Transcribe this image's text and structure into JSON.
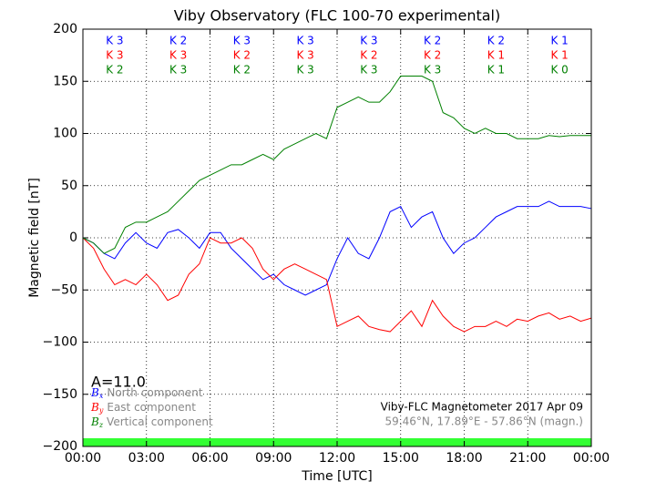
{
  "chart_data": {
    "type": "line",
    "title": "Viby Observatory (FLC 100-70 experimental)",
    "x_label": "Time [UTC]",
    "y_label": "Magnetic field [nT]",
    "x": [
      0,
      0.5,
      1,
      1.5,
      2,
      2.5,
      3,
      3.5,
      4,
      4.5,
      5,
      5.5,
      6,
      6.5,
      7,
      7.5,
      8,
      8.5,
      9,
      9.5,
      10,
      10.5,
      11,
      11.5,
      12,
      12.5,
      13,
      13.5,
      14,
      14.5,
      15,
      15.5,
      16,
      16.5,
      17,
      17.5,
      18,
      18.5,
      19,
      19.5,
      20,
      20.5,
      21,
      21.5,
      22,
      22.5,
      23,
      23.5,
      24
    ],
    "series": [
      {
        "name": "North component",
        "symbol": "B",
        "subscript": "x",
        "color": "#0000ff",
        "values": [
          0,
          -5,
          -15,
          -20,
          -5,
          5,
          -5,
          -10,
          5,
          8,
          0,
          -10,
          5,
          5,
          -10,
          -20,
          -30,
          -40,
          -35,
          -45,
          -50,
          -55,
          -50,
          -45,
          -20,
          0,
          -15,
          -20,
          0,
          25,
          30,
          10,
          20,
          25,
          0,
          -15,
          -5,
          0,
          10,
          20,
          25,
          30,
          30,
          30,
          35,
          30,
          30,
          30,
          28
        ]
      },
      {
        "name": "East component",
        "symbol": "B",
        "subscript": "y",
        "color": "#ff0000",
        "values": [
          0,
          -10,
          -30,
          -45,
          -40,
          -45,
          -35,
          -45,
          -60,
          -55,
          -35,
          -25,
          0,
          -5,
          -5,
          0,
          -10,
          -30,
          -40,
          -30,
          -25,
          -30,
          -35,
          -40,
          -85,
          -80,
          -75,
          -85,
          -88,
          -90,
          -80,
          -70,
          -85,
          -60,
          -75,
          -85,
          -90,
          -85,
          -85,
          -80,
          -85,
          -78,
          -80,
          -75,
          -72,
          -78,
          -75,
          -80,
          -77
        ]
      },
      {
        "name": "Vertical component",
        "symbol": "B",
        "subscript": "z",
        "color": "#008000",
        "values": [
          0,
          -5,
          -15,
          -10,
          10,
          15,
          15,
          20,
          25,
          35,
          45,
          55,
          60,
          65,
          70,
          70,
          75,
          80,
          75,
          85,
          90,
          95,
          100,
          95,
          125,
          130,
          135,
          130,
          130,
          140,
          155,
          155,
          155,
          150,
          120,
          115,
          105,
          100,
          105,
          100,
          100,
          95,
          95,
          95,
          98,
          97,
          98,
          98,
          98
        ]
      }
    ],
    "xlim": [
      0,
      24
    ],
    "xticks": [
      {
        "value": 0,
        "label": "00:00"
      },
      {
        "value": 3,
        "label": "03:00"
      },
      {
        "value": 6,
        "label": "06:00"
      },
      {
        "value": 9,
        "label": "09:00"
      },
      {
        "value": 12,
        "label": "12:00"
      },
      {
        "value": 15,
        "label": "15:00"
      },
      {
        "value": 18,
        "label": "18:00"
      },
      {
        "value": 21,
        "label": "21:00"
      },
      {
        "value": 24,
        "label": "00:00"
      }
    ],
    "ylim": [
      -200,
      200
    ],
    "yticks": [
      {
        "value": -200,
        "label": "−200"
      },
      {
        "value": -150,
        "label": "−150"
      },
      {
        "value": -100,
        "label": "−100"
      },
      {
        "value": -50,
        "label": "−50"
      },
      0,
      50,
      100,
      150,
      200
    ],
    "grid": true,
    "status_bar_color": "#33ff33",
    "k_rows": [
      {
        "color": "#0000ff",
        "labels": [
          "K 3",
          "K 2",
          "K 3",
          "K 3",
          "K 3",
          "K 2",
          "K 2",
          "K 1"
        ]
      },
      {
        "color": "#ff0000",
        "labels": [
          "K 3",
          "K 3",
          "K 2",
          "K 3",
          "K 2",
          "K 2",
          "K 1",
          "K 1"
        ]
      },
      {
        "color": "#008000",
        "labels": [
          "K 2",
          "K 3",
          "K 2",
          "K 3",
          "K 3",
          "K 3",
          "K 1",
          "K 0"
        ]
      }
    ],
    "activity_index": "A=11.0",
    "footer_title": "Viby-FLC Magnetometer 2017 Apr 09",
    "footer_location": "59.46°N, 17.89°E - 57.86°N (magn.)"
  }
}
